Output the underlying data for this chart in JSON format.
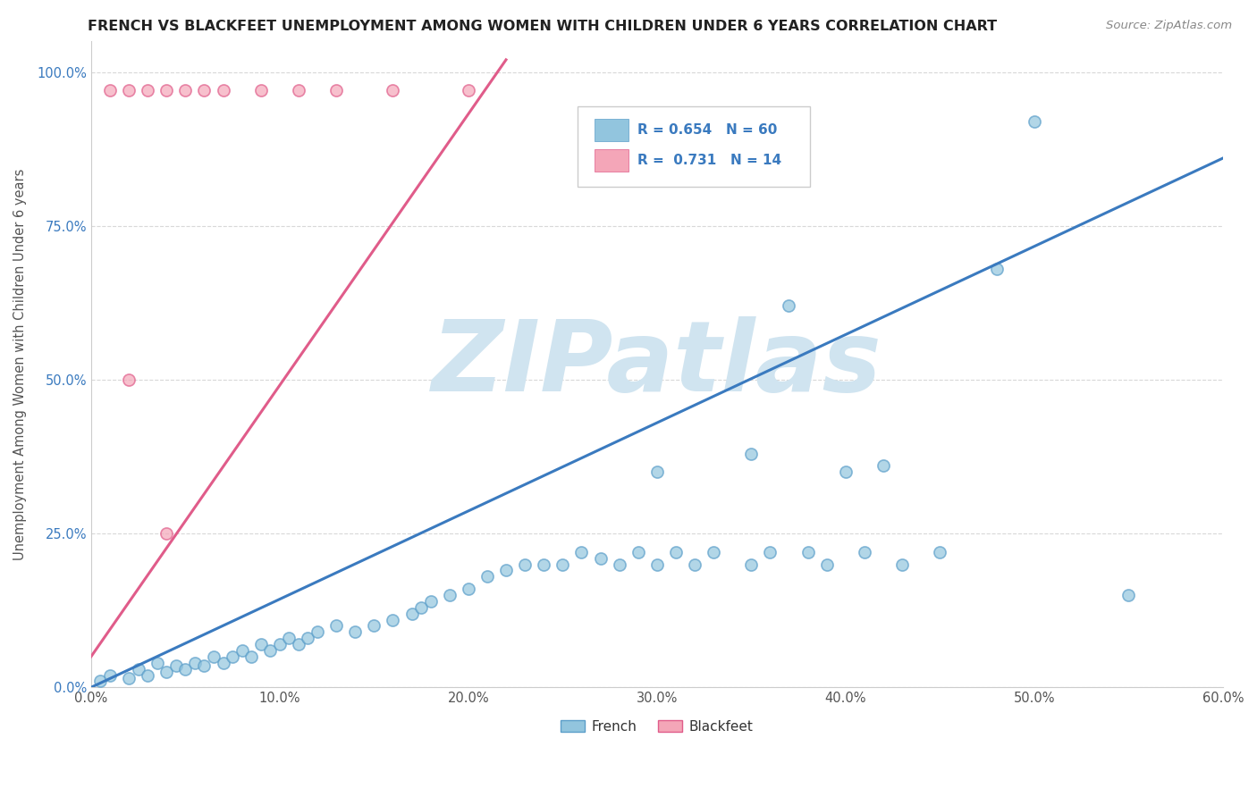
{
  "title": "FRENCH VS BLACKFEET UNEMPLOYMENT AMONG WOMEN WITH CHILDREN UNDER 6 YEARS CORRELATION CHART",
  "source": "Source: ZipAtlas.com",
  "ylabel": "Unemployment Among Women with Children Under 6 years",
  "xlim": [
    0.0,
    0.6
  ],
  "ylim": [
    0.0,
    1.05
  ],
  "xticks": [
    0.0,
    0.1,
    0.2,
    0.3,
    0.4,
    0.5,
    0.6
  ],
  "xticklabels": [
    "0.0%",
    "10.0%",
    "20.0%",
    "30.0%",
    "40.0%",
    "50.0%",
    "60.0%"
  ],
  "yticks": [
    0.0,
    0.25,
    0.5,
    0.75,
    1.0
  ],
  "yticklabels": [
    "0.0%",
    "25.0%",
    "50.0%",
    "75.0%",
    "100.0%"
  ],
  "french_R": 0.654,
  "french_N": 60,
  "blackfeet_R": 0.731,
  "blackfeet_N": 14,
  "french_color": "#92c5de",
  "blackfeet_color": "#f4a6b8",
  "french_edge_color": "#5b9ec9",
  "blackfeet_edge_color": "#e05c8a",
  "french_line_color": "#3a7abf",
  "blackfeet_line_color": "#e05c8a",
  "watermark": "ZIPatlas",
  "watermark_color": "#d0e4f0",
  "background_color": "#ffffff",
  "grid_color": "#d8d8d8",
  "title_color": "#222222",
  "source_color": "#888888",
  "ytick_color": "#3a7abf",
  "xtick_color": "#555555",
  "ylabel_color": "#555555",
  "legend_text_color": "#3a7abf",
  "french_x": [
    0.005,
    0.01,
    0.02,
    0.025,
    0.03,
    0.035,
    0.04,
    0.045,
    0.05,
    0.055,
    0.06,
    0.065,
    0.07,
    0.075,
    0.08,
    0.085,
    0.09,
    0.095,
    0.1,
    0.105,
    0.11,
    0.115,
    0.12,
    0.13,
    0.14,
    0.15,
    0.16,
    0.17,
    0.175,
    0.18,
    0.19,
    0.2,
    0.21,
    0.22,
    0.23,
    0.24,
    0.25,
    0.26,
    0.27,
    0.28,
    0.29,
    0.3,
    0.3,
    0.31,
    0.32,
    0.33,
    0.35,
    0.35,
    0.36,
    0.37,
    0.38,
    0.39,
    0.4,
    0.41,
    0.42,
    0.43,
    0.45,
    0.48,
    0.5,
    0.55
  ],
  "french_y": [
    0.01,
    0.02,
    0.015,
    0.03,
    0.02,
    0.04,
    0.025,
    0.035,
    0.03,
    0.04,
    0.035,
    0.05,
    0.04,
    0.05,
    0.06,
    0.05,
    0.07,
    0.06,
    0.07,
    0.08,
    0.07,
    0.08,
    0.09,
    0.1,
    0.09,
    0.1,
    0.11,
    0.12,
    0.13,
    0.14,
    0.15,
    0.16,
    0.18,
    0.19,
    0.2,
    0.2,
    0.2,
    0.22,
    0.21,
    0.2,
    0.22,
    0.2,
    0.35,
    0.22,
    0.2,
    0.22,
    0.2,
    0.38,
    0.22,
    0.62,
    0.22,
    0.2,
    0.35,
    0.22,
    0.36,
    0.2,
    0.22,
    0.68,
    0.92,
    0.15
  ],
  "blackfeet_x": [
    0.01,
    0.02,
    0.03,
    0.04,
    0.05,
    0.06,
    0.07,
    0.09,
    0.11,
    0.13,
    0.16,
    0.2,
    0.02,
    0.04
  ],
  "blackfeet_y": [
    0.97,
    0.97,
    0.97,
    0.97,
    0.97,
    0.97,
    0.97,
    0.97,
    0.97,
    0.97,
    0.97,
    0.97,
    0.5,
    0.25
  ],
  "french_trend_x": [
    0.0,
    0.6
  ],
  "french_trend_y": [
    0.0,
    0.86
  ],
  "blackfeet_trend_x": [
    0.0,
    0.22
  ],
  "blackfeet_trend_y": [
    0.05,
    1.02
  ]
}
